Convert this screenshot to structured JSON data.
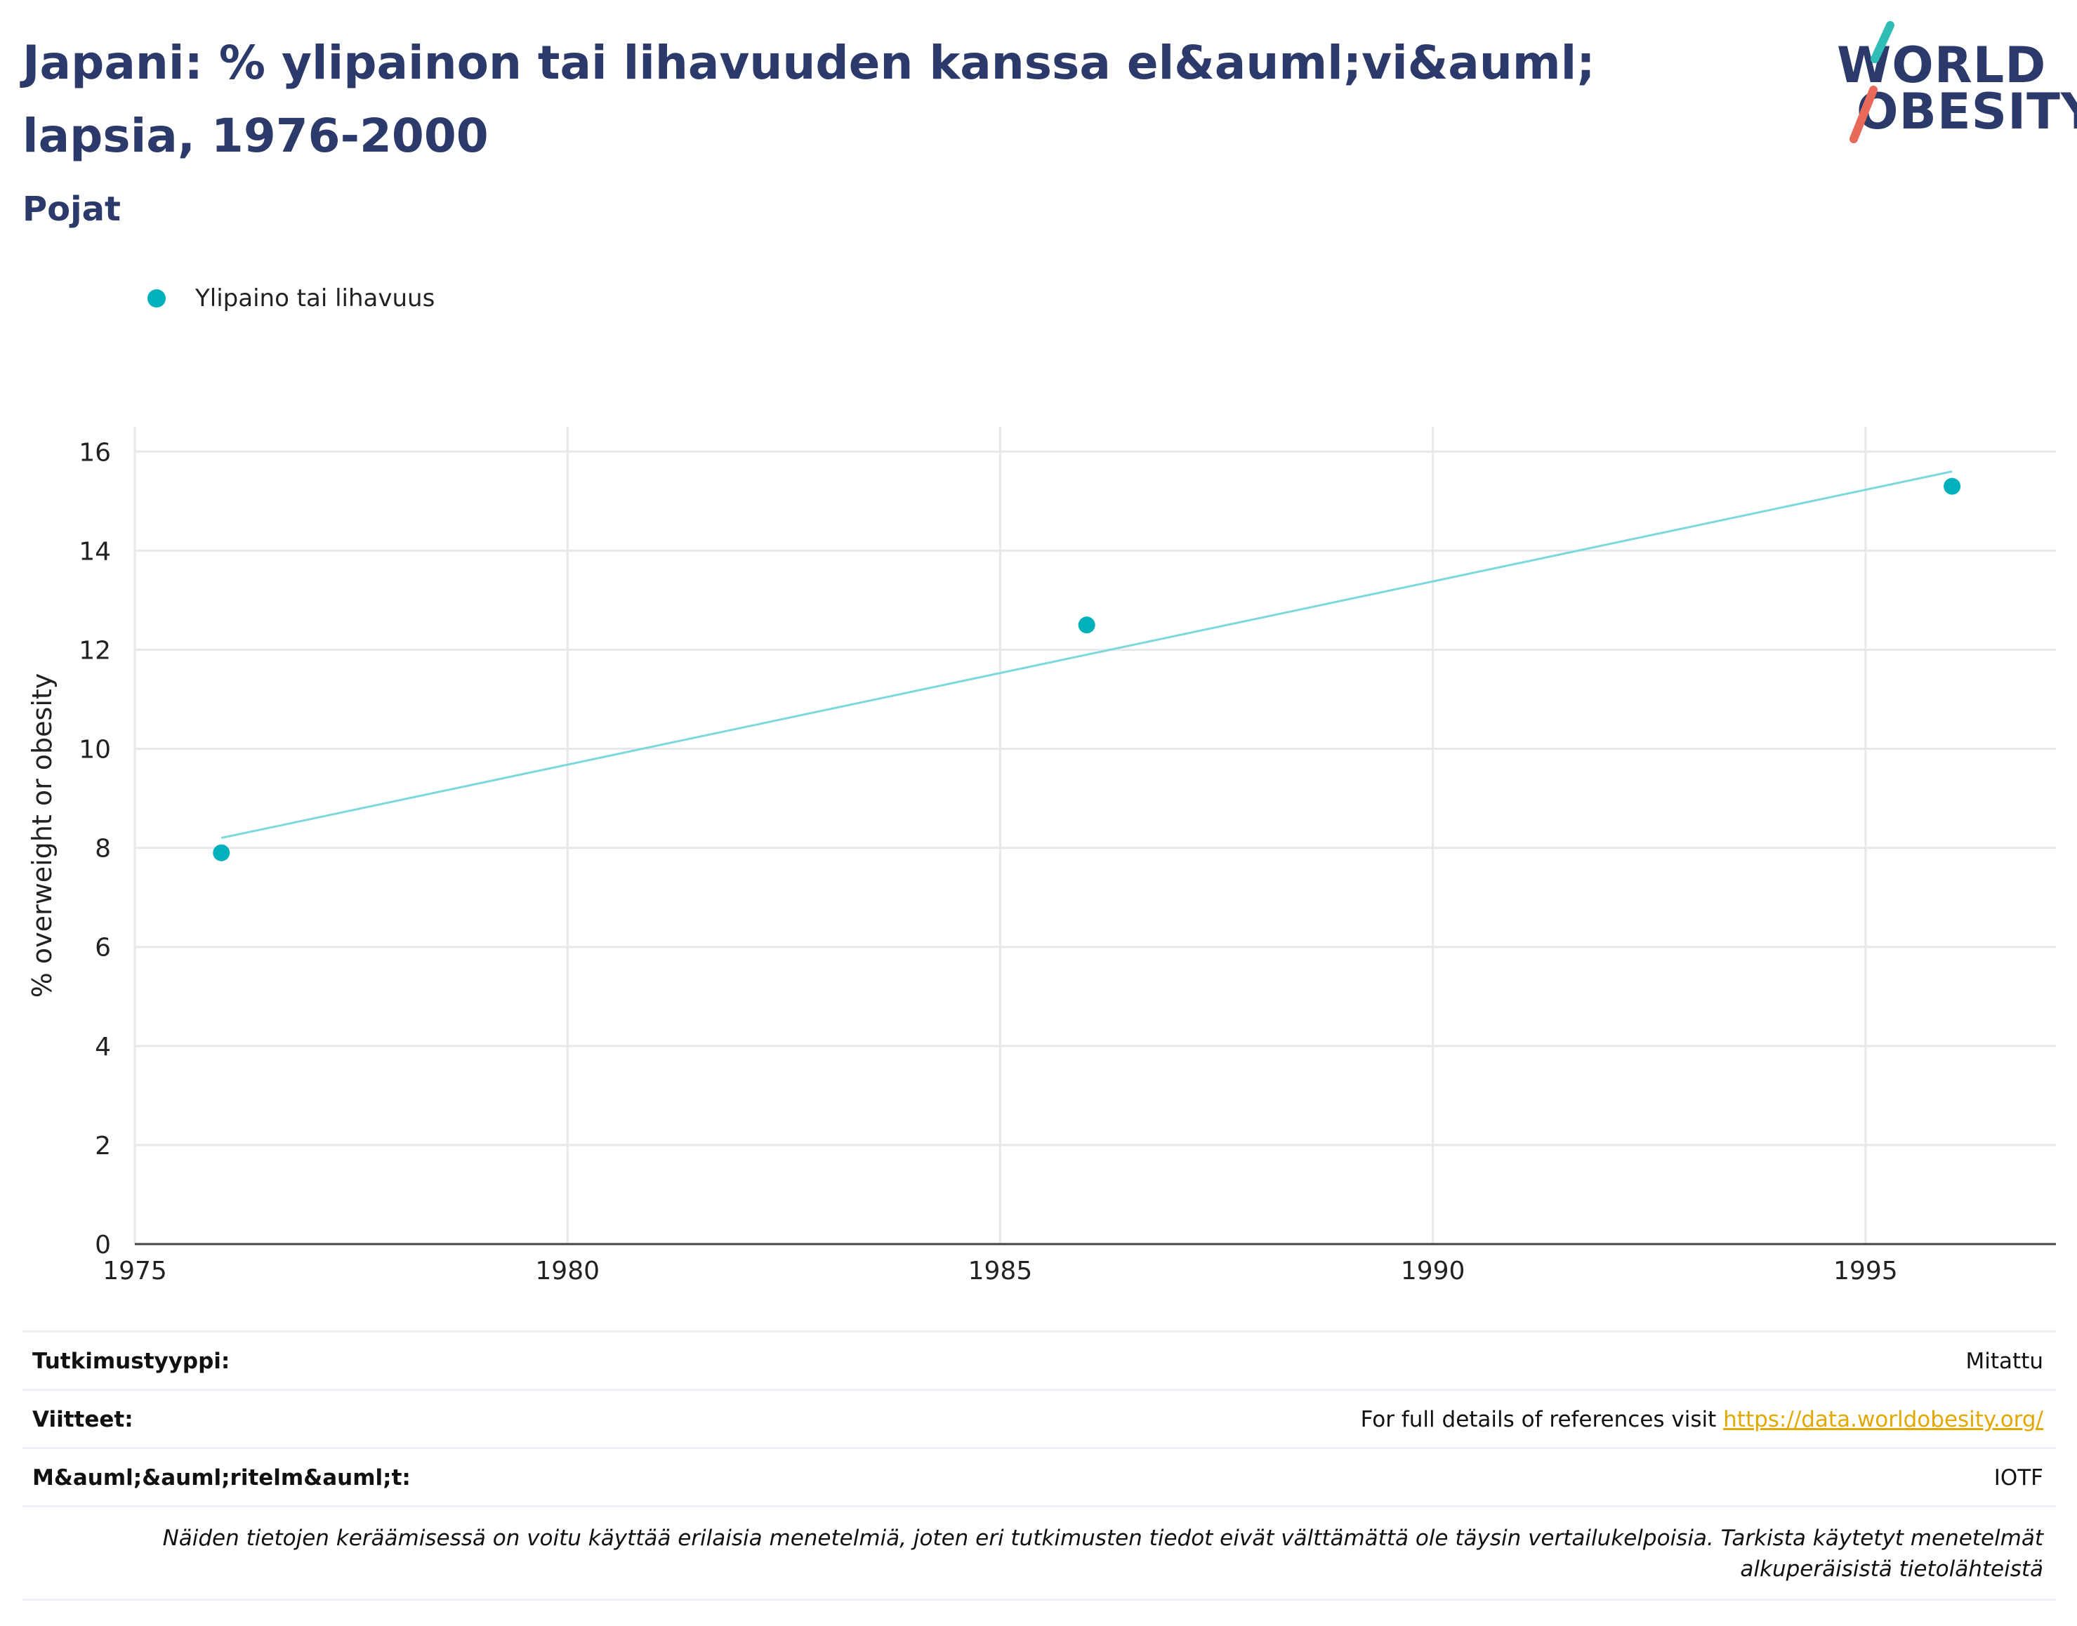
{
  "header": {
    "title": "Japani: % ylipainon tai lihavuuden kanssa el&auml;vi&auml; lapsia, 1976-2000",
    "subtitle": "Pojat"
  },
  "logo": {
    "line1": "WORLD",
    "line2": "OBESITY",
    "colors": {
      "teal": "#2fbdb5",
      "red": "#e8685a",
      "navy": "#2b3a6b"
    }
  },
  "legend": {
    "items": [
      {
        "label": "Ylipaino tai lihavuus",
        "color": "#00b0bb"
      }
    ]
  },
  "chart_data": {
    "type": "scatter",
    "title": "Japani: % ylipainon tai lihavuuden kanssa el&auml;vi&auml; lapsia, 1976-2000",
    "subtitle": "Pojat",
    "xlabel": "",
    "ylabel": "% overweight or obesity",
    "xlim": [
      1975,
      1997.2
    ],
    "ylim": [
      0,
      16.5
    ],
    "xticks": [
      1975,
      1980,
      1985,
      1990,
      1995
    ],
    "yticks": [
      0,
      2,
      4,
      6,
      8,
      10,
      12,
      14,
      16
    ],
    "grid": true,
    "legend_position": "top-left",
    "series": [
      {
        "name": "Ylipaino tai lihavuus",
        "color": "#00b0bb",
        "points": [
          {
            "x": 1976,
            "y": 7.9
          },
          {
            "x": 1986,
            "y": 12.5
          },
          {
            "x": 1996,
            "y": 15.3
          }
        ]
      }
    ],
    "trendline": {
      "color": "#7dd8dc",
      "points": [
        {
          "x": 1976,
          "y": 8.2
        },
        {
          "x": 1996,
          "y": 15.6
        }
      ]
    }
  },
  "info": {
    "rows": [
      {
        "key": "Tutkimustyyppi:",
        "value": "Mitattu"
      },
      {
        "key": "Viitteet:",
        "value": "For full details of references visit ",
        "link": "https://data.worldobesity.org/"
      },
      {
        "key": "M&auml;&auml;ritelm&auml;t:",
        "value": "IOTF"
      }
    ],
    "note_line1": "Näiden tietojen keräämisessä on voitu käyttää erilaisia menetelmiä, joten eri tutkimusten tiedot eivät välttämättä ole täysin vertailukelpoisia. Tarkista käytetyt menetelmät",
    "note_line2": "alkuperäisistä tietolähteistä"
  }
}
